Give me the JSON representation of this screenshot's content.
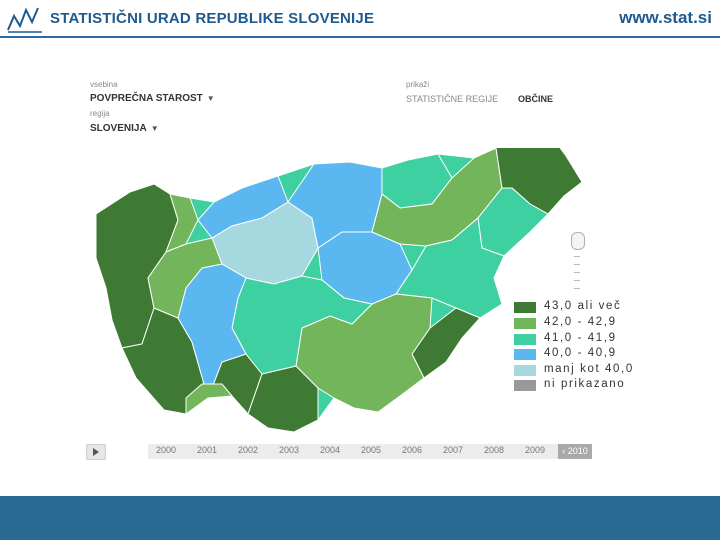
{
  "header": {
    "org_name": "STATISTIČNI URAD REPUBLIKE SLOVENIJE",
    "site_url": "www.stat.si"
  },
  "controls": {
    "content_label": "vsebina",
    "content_value": "POVPREČNA STAROST",
    "region_label": "regija",
    "region_value": "SLOVENIJA",
    "show_label": "prikaži",
    "view_options": [
      "STATISTIČNE REGIJE",
      "OBČINE"
    ],
    "active_view": "OBČINE"
  },
  "legend": [
    {
      "label": "43,0 ali več",
      "color": "#3f7a34"
    },
    {
      "label": "42,0 - 42,9",
      "color": "#72b55a"
    },
    {
      "label": "41,0 - 41,9",
      "color": "#3fd0a1"
    },
    {
      "label": "40,0 - 40,9",
      "color": "#5ab7ef"
    },
    {
      "label": "manj kot 40,0",
      "color": "#a6d8e0"
    },
    {
      "label": "ni prikazano",
      "color": "#999999"
    }
  ],
  "timeline": {
    "years": [
      "2000",
      "2001",
      "2002",
      "2003",
      "2004",
      "2005",
      "2006",
      "2007",
      "2008",
      "2009"
    ],
    "current_year": "‹ 2010"
  },
  "icons": {
    "logo": "stat-si-logo-icon",
    "play": "play-icon",
    "zoom": "zoom-slider-icon"
  }
}
